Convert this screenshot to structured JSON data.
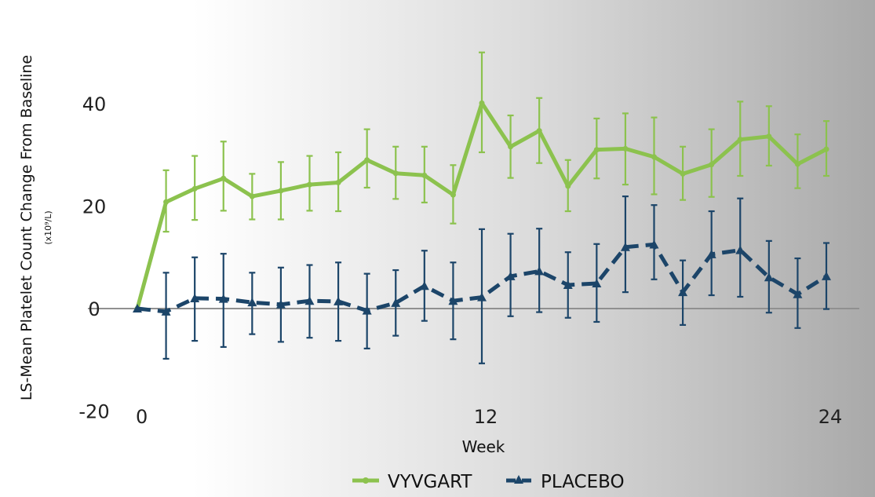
{
  "chart_data": {
    "type": "line",
    "title": "",
    "xlabel": "Week",
    "ylabel": "LS-Mean Platelet Count Change From Baseline",
    "yunit": "(x10⁹/L)",
    "xlim": [
      0,
      24
    ],
    "ylim": [
      -20,
      50
    ],
    "xticks": [
      0,
      12,
      24
    ],
    "yticks": [
      40,
      20,
      0,
      -20
    ],
    "grid": false,
    "legend_position": "bottom",
    "x": [
      0,
      1,
      2,
      3,
      4,
      5,
      6,
      7,
      8,
      9,
      10,
      11,
      12,
      13,
      14,
      15,
      16,
      17,
      18,
      19,
      20,
      21,
      22,
      23,
      24
    ],
    "series": [
      {
        "name": "VYVGART",
        "color": "#8cc24e",
        "style": "solid",
        "marker": "circle",
        "values": [
          0,
          20.8,
          23.4,
          25.4,
          21.9,
          23,
          24.2,
          24.6,
          29,
          26.4,
          26,
          22.2,
          40.1,
          31.6,
          34.7,
          23.9,
          31,
          31.2,
          29.6,
          26.3,
          28.1,
          33,
          33.6,
          28.2,
          31.1
        ],
        "upper": [
          0,
          27,
          29.8,
          32.6,
          26.3,
          28.6,
          29.8,
          30.5,
          35,
          31.6,
          31.6,
          28,
          50,
          37.7,
          41.1,
          29,
          37.1,
          38.1,
          37.3,
          31.6,
          35,
          40.4,
          39.5,
          34,
          36.6
        ],
        "lower": [
          0,
          15,
          17.3,
          19.1,
          17.4,
          17.4,
          19.1,
          19,
          23.6,
          21.4,
          20.7,
          16.6,
          30.5,
          25.5,
          28.4,
          19,
          25.4,
          24.2,
          22.3,
          21.2,
          21.8,
          25.9,
          27.9,
          23.5,
          25.9
        ]
      },
      {
        "name": "PLACEBO",
        "color": "#1c4569",
        "style": "dashed",
        "marker": "triangle",
        "values": [
          0,
          -0.6,
          2,
          1.9,
          1.2,
          0.8,
          1.5,
          1.4,
          -0.4,
          1.1,
          4.4,
          1.5,
          2.2,
          6.3,
          7.3,
          4.6,
          4.9,
          12,
          12.5,
          3.2,
          10.6,
          11.4,
          6.1,
          2.8,
          6.3
        ],
        "upper": [
          0,
          7,
          10,
          10.7,
          7,
          8,
          8.5,
          9,
          6.8,
          7.5,
          11.3,
          9,
          15.5,
          14.6,
          15.6,
          11,
          12.6,
          21.9,
          20.2,
          9.4,
          19,
          21.5,
          13.2,
          9.8,
          12.8
        ],
        "lower": [
          0,
          -9.8,
          -6.3,
          -7.5,
          -5,
          -6.5,
          -5.7,
          -6.3,
          -7.8,
          -5.3,
          -2.4,
          -6,
          -10.7,
          -1.5,
          -0.7,
          -1.8,
          -2.6,
          3.2,
          5.7,
          -3.2,
          2.6,
          2.3,
          -0.8,
          -3.8,
          -0.1
        ]
      }
    ]
  }
}
